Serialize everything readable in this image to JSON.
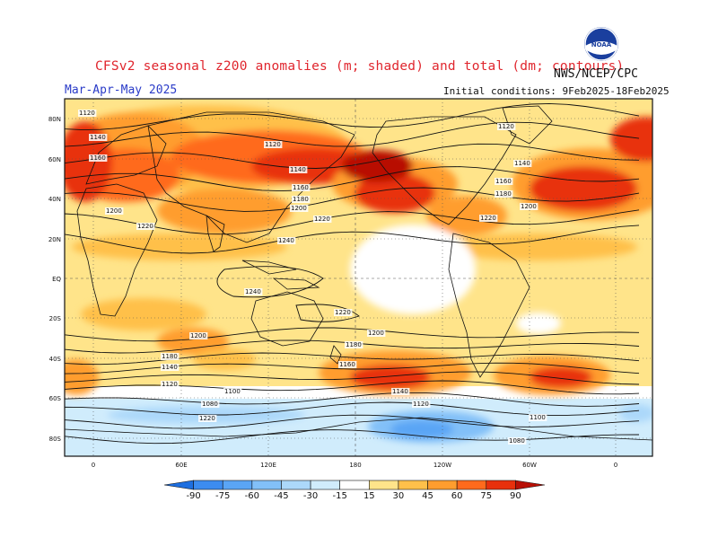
{
  "header": {
    "title": "CFSv2 seasonal z200 anomalies (m; shaded) and total (dm; contours)",
    "agency": "NWS/NCEP/CPC",
    "period": "Mar-Apr-May 2025",
    "initial_conditions": "Initial conditions: 9Feb2025-18Feb2025"
  },
  "logo": {
    "label": "NOAA",
    "icon": "noaa-logo"
  },
  "map": {
    "lat_labels": [
      "80N",
      "60N",
      "40N",
      "20N",
      "EQ",
      "20S",
      "40S",
      "60S",
      "80S"
    ],
    "lon_labels": [
      "0",
      "60E",
      "120E",
      "180",
      "120W",
      "60W",
      "0"
    ],
    "contour_labels": [
      "1120",
      "1140",
      "1160",
      "1200",
      "1220",
      "1120",
      "1140",
      "1160",
      "1180",
      "1200",
      "1220",
      "1240",
      "1120",
      "1140",
      "1160",
      "1180",
      "1200",
      "1220",
      "1240",
      "1220",
      "1200",
      "1180",
      "1140",
      "1120",
      "1100",
      "1080",
      "1220",
      "1200",
      "1180",
      "1160",
      "1140",
      "1120",
      "1100",
      "1080"
    ]
  },
  "colorbar": {
    "ticks": [
      "-90",
      "-75",
      "-60",
      "-45",
      "-30",
      "-15",
      "15",
      "30",
      "45",
      "60",
      "75",
      "90"
    ],
    "colors": [
      "#1e6fe0",
      "#3c8cf0",
      "#5aa5f5",
      "#82c0f8",
      "#acd8fa",
      "#d0ecfc",
      "#ffffff",
      "#ffe48a",
      "#ffc04a",
      "#ff9d2e",
      "#ff6a1c",
      "#e8300c",
      "#b81006"
    ]
  }
}
